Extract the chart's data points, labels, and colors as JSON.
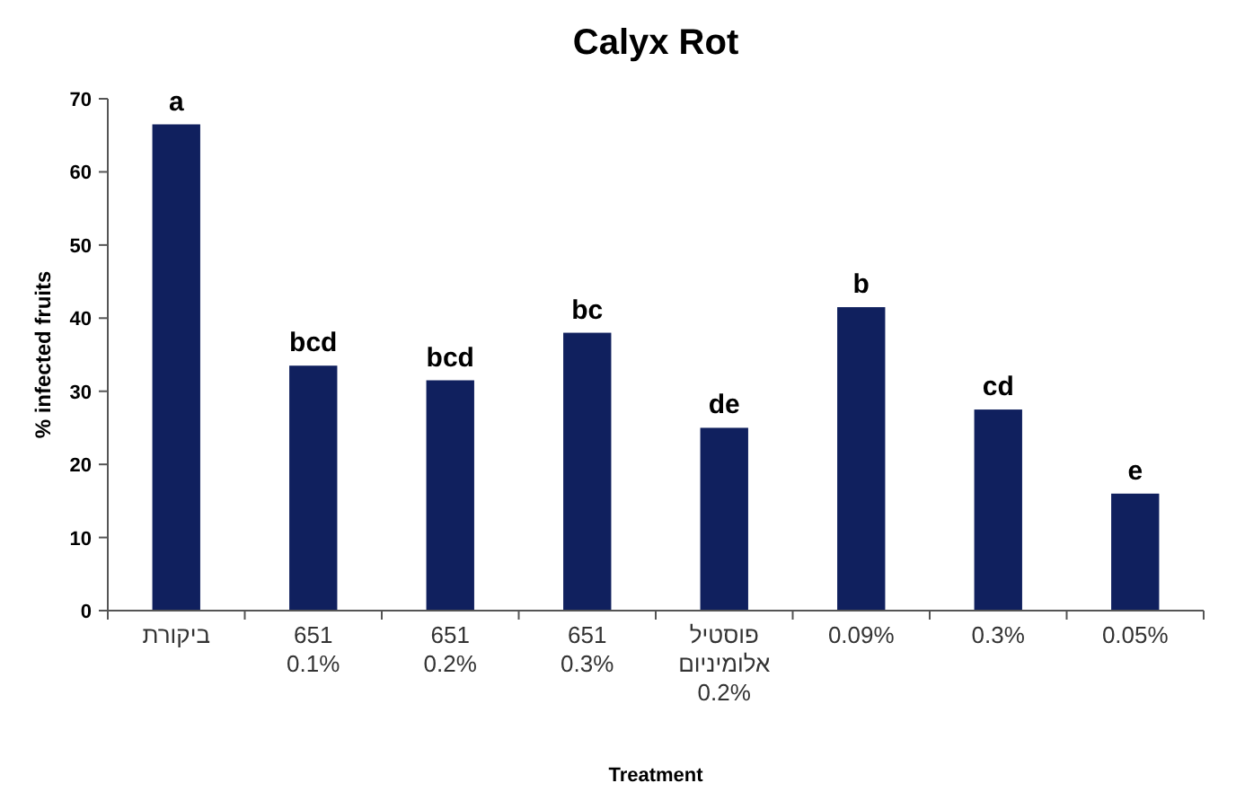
{
  "chart_data": {
    "type": "bar",
    "title": "Calyx Rot",
    "xlabel": "Treatment",
    "ylabel": "% infected fruits",
    "categories": [
      "ביקורת",
      "651\n0.1%",
      "651\n0.2%",
      "651\n0.3%",
      "פוסטיל\nאלומיניום\n0.2%",
      "0.09%",
      "0.3%",
      "0.05%"
    ],
    "values": [
      66.5,
      33.5,
      31.5,
      38,
      25,
      41.5,
      27.5,
      16
    ],
    "color": "#10205e",
    "ylim": [
      0,
      70
    ],
    "yticks": [
      0,
      10,
      20,
      30,
      40,
      50,
      60,
      70
    ],
    "grid": false,
    "annotations": [
      {
        "text": "a",
        "x": "ביקורת",
        "y": 66.5
      },
      {
        "text": "bcd",
        "x": "651\n0.1%",
        "y": 33.5
      },
      {
        "text": "bcd",
        "x": "651\n0.2%",
        "y": 31.5
      },
      {
        "text": "bc",
        "x": "651\n0.3%",
        "y": 38
      },
      {
        "text": "de",
        "x": "פוסטיל\nאלומיניום\n0.2%",
        "y": 25
      },
      {
        "text": "b",
        "x": "0.09%",
        "y": 41.5
      },
      {
        "text": "cd",
        "x": "0.3%",
        "y": 27.5
      },
      {
        "text": "e",
        "x": "0.05%",
        "y": 16
      }
    ]
  }
}
